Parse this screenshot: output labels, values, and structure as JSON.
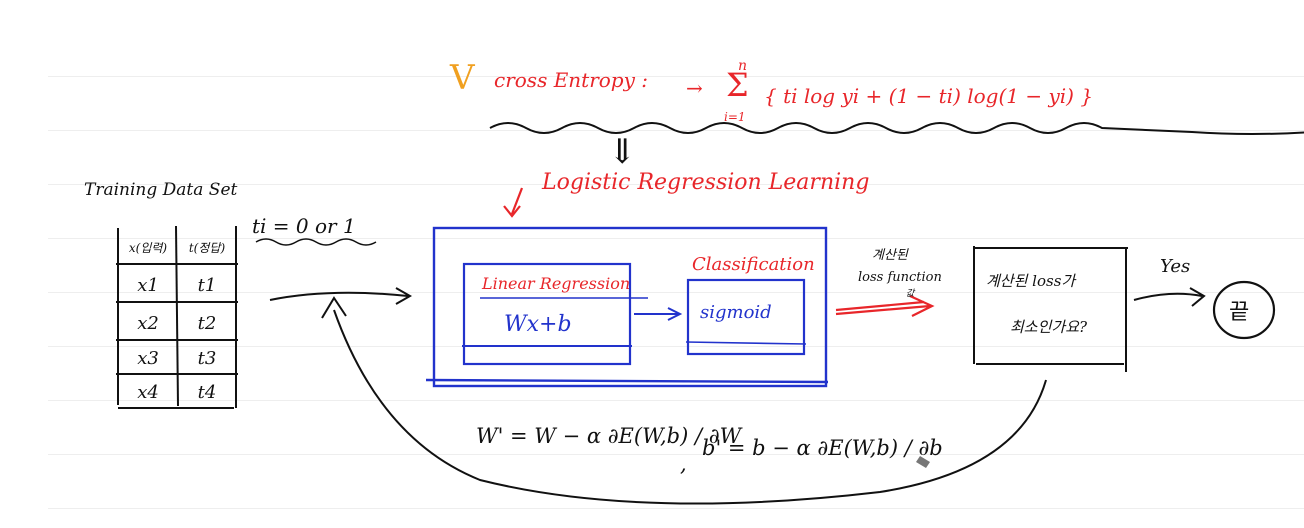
{
  "check_mark": "V",
  "cross_entropy": {
    "label": "cross Entropy :",
    "arrow": "→",
    "sum_top": "n",
    "sum_symbol": "Σ",
    "sum_bottom": "i=1",
    "formula": "{ ti log yi + (1 − ti) log(1 − yi) }"
  },
  "down_arrow": "⇓",
  "section_title": "Logistic Regression Learning",
  "training": {
    "title": "Training Data Set",
    "label_note": "ti = 0 or 1",
    "headers": [
      "x(입력)",
      "t(정답)"
    ],
    "rows": [
      [
        "x1",
        "t1"
      ],
      [
        "x2",
        "t2"
      ],
      [
        "x3",
        "t3"
      ],
      [
        "x4",
        "t4"
      ]
    ]
  },
  "linear": {
    "title": "Linear Regression",
    "expr": "Wx+b"
  },
  "classification": {
    "title": "Classification",
    "sigmoid": "sigmoid"
  },
  "computed_loss": {
    "line1": "계산된",
    "line2": "loss function",
    "line3": "값"
  },
  "decision": {
    "line1": "계산된 loss가",
    "line2": "최소인가요?"
  },
  "yes_label": "Yes",
  "end_label": "끝",
  "update": {
    "w_rule": "W' = W − α ∂E(W,b) / ∂W",
    "separator": ",",
    "b_rule": "b' = b − α ∂E(W,b) / ∂b"
  },
  "colors": {
    "red": "#e8262a",
    "blue": "#2233cc",
    "black": "#111111",
    "check": "#f0a020"
  }
}
